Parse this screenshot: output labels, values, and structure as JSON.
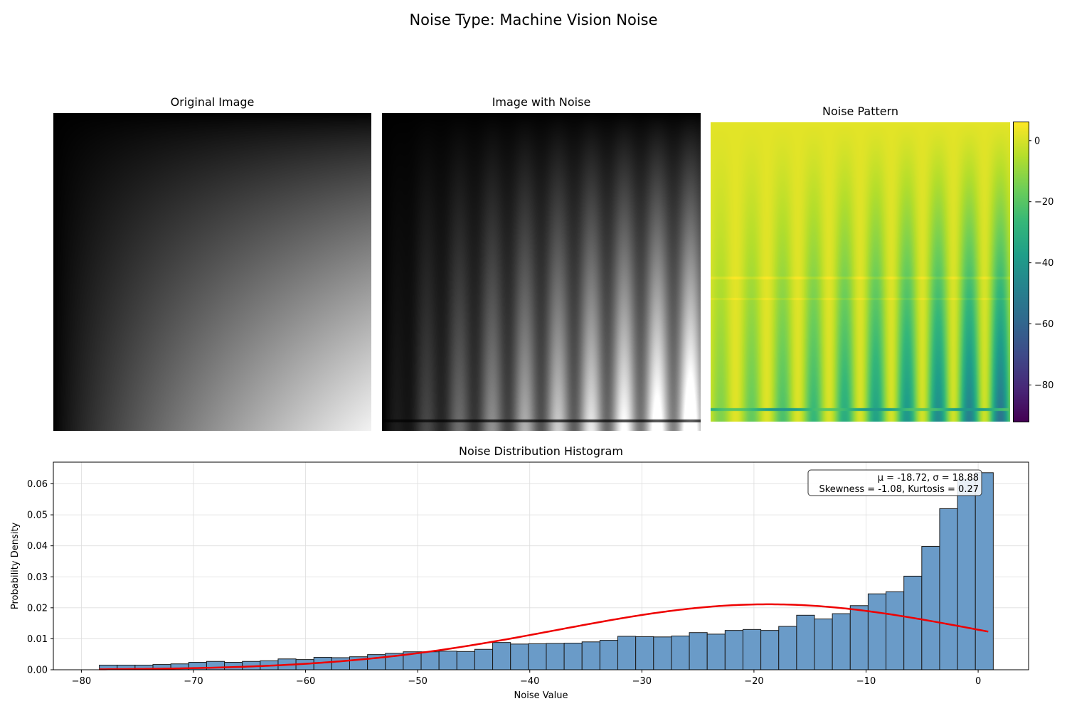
{
  "figure": {
    "suptitle": "Noise Type: Machine Vision Noise"
  },
  "panels": {
    "original": {
      "title": "Original Image"
    },
    "noisy": {
      "title": "Image with Noise"
    },
    "pattern": {
      "title": "Noise Pattern",
      "colormap": "viridis",
      "colorbar_range": [
        -92,
        6
      ],
      "colorbar_ticks": [
        "0",
        "−20",
        "−40",
        "−60",
        "−80"
      ]
    }
  },
  "chart_data": {
    "type": "bar",
    "title": "Noise Distribution Histogram",
    "xlabel": "Noise Value",
    "ylabel": "Probability Density",
    "xlim": [
      -82.5,
      4.5
    ],
    "ylim": [
      0,
      0.067
    ],
    "xticks": [
      -80,
      -70,
      -60,
      -50,
      -40,
      -30,
      -20,
      -10,
      0
    ],
    "xtick_labels": [
      "−80",
      "−70",
      "−60",
      "−50",
      "−40",
      "−30",
      "−20",
      "−10",
      "0"
    ],
    "yticks": [
      0.0,
      0.01,
      0.02,
      0.03,
      0.04,
      0.05,
      0.06
    ],
    "ytick_labels": [
      "0.00",
      "0.01",
      "0.02",
      "0.03",
      "0.04",
      "0.05",
      "0.06"
    ],
    "grid": true,
    "bin_start": -78.4,
    "bin_width": 1.595,
    "bar_color": "#6a9bc8",
    "bar_edge_color": "#1a1a1a",
    "values": [
      0.0015,
      0.0015,
      0.0015,
      0.0017,
      0.0019,
      0.0024,
      0.0027,
      0.0024,
      0.0027,
      0.0029,
      0.0035,
      0.0033,
      0.004,
      0.0039,
      0.0042,
      0.0049,
      0.0053,
      0.0058,
      0.0058,
      0.006,
      0.0059,
      0.0066,
      0.0088,
      0.0083,
      0.0084,
      0.0085,
      0.0086,
      0.009,
      0.0095,
      0.0108,
      0.0107,
      0.0106,
      0.0109,
      0.012,
      0.0115,
      0.0127,
      0.013,
      0.0127,
      0.014,
      0.0176,
      0.0164,
      0.0181,
      0.0207,
      0.0245,
      0.0252,
      0.0302,
      0.0398,
      0.052,
      0.0615,
      0.0636
    ],
    "fit_curve": {
      "type": "normal",
      "mu": -18.72,
      "sigma": 18.88,
      "color": "#ee0000",
      "x_range": [
        -78.4,
        0.9
      ]
    },
    "annotation": {
      "line1": "μ = -18.72, σ = 18.88",
      "line2": "Skewness = -1.08, Kurtosis = 0.27",
      "placement": "top-right"
    }
  }
}
